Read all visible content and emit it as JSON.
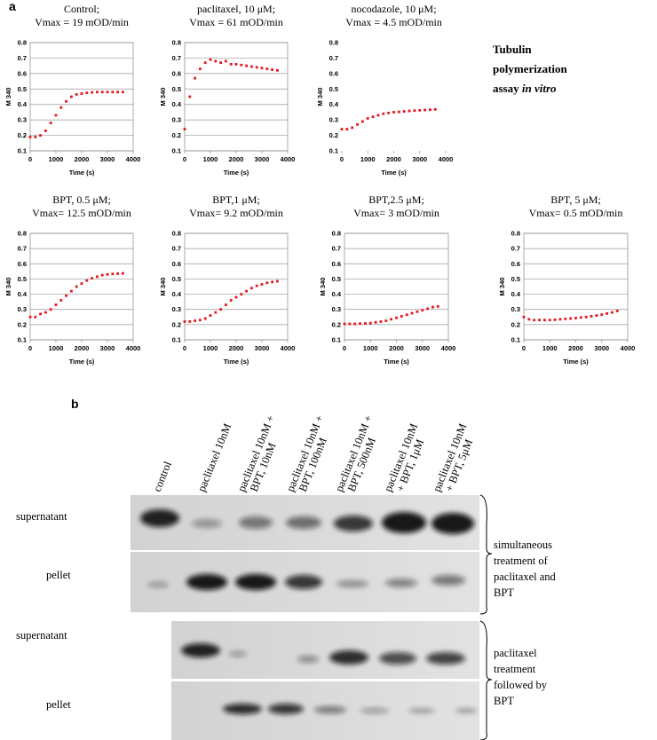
{
  "panel_labels": {
    "a": "a",
    "b": "b"
  },
  "side_note": {
    "line1": "Tubulin",
    "line2": "polymerization",
    "line3": "assay",
    "line3_italic": "in vitro"
  },
  "chart_data": [
    {
      "type": "scatter",
      "title": "Control;",
      "subtitle": "Vmax = 19 mOD/min",
      "x_label": "Time (s)",
      "y_label": "M 340",
      "color": "#e8141c",
      "grid": true,
      "x": [
        0,
        200,
        400,
        600,
        800,
        1000,
        1200,
        1400,
        1600,
        1800,
        2000,
        2200,
        2400,
        2600,
        2800,
        3000,
        3200,
        3400,
        3600
      ],
      "values": [
        0.19,
        0.19,
        0.2,
        0.23,
        0.28,
        0.33,
        0.38,
        0.42,
        0.45,
        0.465,
        0.47,
        0.475,
        0.478,
        0.48,
        0.48,
        0.48,
        0.48,
        0.48,
        0.48
      ],
      "xlim": [
        0,
        4000
      ],
      "xticks": [
        0,
        1000,
        2000,
        3000,
        4000
      ],
      "ylim": [
        0.1,
        0.8
      ],
      "yticks": [
        0.1,
        0.2,
        0.3,
        0.4,
        0.5,
        0.6,
        0.7,
        0.8
      ]
    },
    {
      "type": "scatter",
      "title": "paclitaxel, 10 μM;",
      "subtitle": "Vmax = 61 mOD/min",
      "x_label": "Time (s)",
      "y_label": "M 340",
      "color": "#e8141c",
      "grid": true,
      "x": [
        0,
        200,
        400,
        600,
        800,
        1000,
        1200,
        1400,
        1600,
        1800,
        2000,
        2200,
        2400,
        2600,
        2800,
        3000,
        3200,
        3400,
        3600
      ],
      "values": [
        0.24,
        0.45,
        0.57,
        0.63,
        0.67,
        0.69,
        0.68,
        0.67,
        0.68,
        0.66,
        0.66,
        0.655,
        0.65,
        0.645,
        0.64,
        0.635,
        0.63,
        0.625,
        0.62
      ],
      "xlim": [
        0,
        4000
      ],
      "xticks": [
        0,
        1000,
        2000,
        3000,
        4000
      ],
      "ylim": [
        0.1,
        0.8
      ],
      "yticks": [
        0.1,
        0.2,
        0.3,
        0.4,
        0.5,
        0.6,
        0.7,
        0.8
      ]
    },
    {
      "type": "scatter",
      "title": "nocodazole, 10 μM;",
      "subtitle": "Vmax = 4.5 mOD/min",
      "x_label": "Time (s)",
      "y_label": "M 340",
      "color": "#e8141c",
      "grid": false,
      "x": [
        0,
        200,
        400,
        600,
        800,
        1000,
        1200,
        1400,
        1600,
        1800,
        2000,
        2200,
        2400,
        2600,
        2800,
        3000,
        3200,
        3400,
        3600
      ],
      "values": [
        0.24,
        0.24,
        0.25,
        0.27,
        0.29,
        0.31,
        0.32,
        0.33,
        0.34,
        0.345,
        0.35,
        0.352,
        0.355,
        0.358,
        0.36,
        0.362,
        0.364,
        0.366,
        0.368
      ],
      "xlim": [
        0,
        4000
      ],
      "xticks": [
        0,
        1000,
        2000,
        3000,
        4000
      ],
      "ylim": [
        0.1,
        0.8
      ],
      "yticks": [
        0.1,
        0.2,
        0.3,
        0.4,
        0.5,
        0.6,
        0.7,
        0.8
      ]
    },
    {
      "type": "scatter",
      "title": "BPT, 0.5 μM;",
      "subtitle": "Vmax= 12.5 mOD/min",
      "x_label": "Time (s)",
      "y_label": "M 340",
      "color": "#e8141c",
      "grid": true,
      "x": [
        0,
        200,
        400,
        600,
        800,
        1000,
        1200,
        1400,
        1600,
        1800,
        2000,
        2200,
        2400,
        2600,
        2800,
        3000,
        3200,
        3400,
        3600
      ],
      "values": [
        0.25,
        0.25,
        0.27,
        0.28,
        0.3,
        0.33,
        0.36,
        0.39,
        0.42,
        0.45,
        0.47,
        0.49,
        0.505,
        0.515,
        0.525,
        0.53,
        0.533,
        0.535,
        0.537
      ],
      "xlim": [
        0,
        4000
      ],
      "xticks": [
        0,
        1000,
        2000,
        3000,
        4000
      ],
      "ylim": [
        0.1,
        0.8
      ],
      "yticks": [
        0.1,
        0.2,
        0.3,
        0.4,
        0.5,
        0.6,
        0.7,
        0.8
      ]
    },
    {
      "type": "scatter",
      "title": "BPT,1 μM;",
      "subtitle": "Vmax= 9.2 mOD/min",
      "x_label": "Time (s)",
      "y_label": "M 340",
      "color": "#e8141c",
      "grid": true,
      "x": [
        0,
        200,
        400,
        600,
        800,
        1000,
        1200,
        1400,
        1600,
        1800,
        2000,
        2200,
        2400,
        2600,
        2800,
        3000,
        3200,
        3400,
        3600
      ],
      "values": [
        0.22,
        0.22,
        0.225,
        0.23,
        0.24,
        0.26,
        0.28,
        0.3,
        0.33,
        0.36,
        0.38,
        0.4,
        0.42,
        0.44,
        0.455,
        0.465,
        0.475,
        0.48,
        0.485
      ],
      "xlim": [
        0,
        4000
      ],
      "xticks": [
        0,
        1000,
        2000,
        3000,
        4000
      ],
      "ylim": [
        0.1,
        0.8
      ],
      "yticks": [
        0.1,
        0.2,
        0.3,
        0.4,
        0.5,
        0.6,
        0.7,
        0.8
      ]
    },
    {
      "type": "scatter",
      "title": "BPT,2.5 μM;",
      "subtitle": "Vmax= 3 mOD/min",
      "x_label": "Time (s)",
      "y_label": "M 340",
      "color": "#e8141c",
      "grid": true,
      "x": [
        0,
        200,
        400,
        600,
        800,
        1000,
        1200,
        1400,
        1600,
        1800,
        2000,
        2200,
        2400,
        2600,
        2800,
        3000,
        3200,
        3400,
        3600
      ],
      "values": [
        0.205,
        0.205,
        0.205,
        0.207,
        0.208,
        0.21,
        0.215,
        0.22,
        0.225,
        0.235,
        0.245,
        0.255,
        0.265,
        0.275,
        0.285,
        0.295,
        0.305,
        0.315,
        0.32
      ],
      "xlim": [
        0,
        4000
      ],
      "xticks": [
        0,
        1000,
        2000,
        3000,
        4000
      ],
      "ylim": [
        0.1,
        0.8
      ],
      "yticks": [
        0.1,
        0.2,
        0.3,
        0.4,
        0.5,
        0.6,
        0.7,
        0.8
      ]
    },
    {
      "type": "scatter",
      "title": "BPT, 5 μM;",
      "subtitle": "Vmax= 0.5 mOD/min",
      "x_label": "Time (s)",
      "y_label": "M 340",
      "color": "#e8141c",
      "grid": true,
      "x": [
        0,
        200,
        400,
        600,
        800,
        1000,
        1200,
        1400,
        1600,
        1800,
        2000,
        2200,
        2400,
        2600,
        2800,
        3000,
        3200,
        3400,
        3600
      ],
      "values": [
        0.25,
        0.235,
        0.23,
        0.23,
        0.23,
        0.23,
        0.232,
        0.235,
        0.238,
        0.24,
        0.243,
        0.247,
        0.25,
        0.255,
        0.26,
        0.266,
        0.273,
        0.28,
        0.29
      ],
      "xlim": [
        0,
        4000
      ],
      "xticks": [
        0,
        1000,
        2000,
        3000,
        4000
      ],
      "ylim": [
        0.1,
        0.8
      ],
      "yticks": [
        0.1,
        0.2,
        0.3,
        0.4,
        0.5,
        0.6,
        0.7,
        0.8
      ]
    }
  ],
  "blot": {
    "columns": [
      [
        "control"
      ],
      [
        "paclitaxel 10nM"
      ],
      [
        "paclitaxel 10nM +",
        "BPT, 10nM"
      ],
      [
        "paclitaxel 10nM +",
        "BPT, 100nM"
      ],
      [
        "paclitaxel 10nM +",
        "BPT, 500nM"
      ],
      [
        "paclitaxel 10nM",
        "+ BPT, 1μM"
      ],
      [
        "paclitaxel 10nM",
        "+ BPT, 5μM"
      ]
    ],
    "rows": [
      "supernatant",
      "pellet",
      "supernatant",
      "pellet"
    ],
    "group1_note": [
      "simultaneous",
      "treatment of",
      "paclitaxel and",
      "BPT"
    ],
    "group2_note": [
      "paclitaxel",
      "treatment",
      "followed by",
      "BPT"
    ]
  }
}
